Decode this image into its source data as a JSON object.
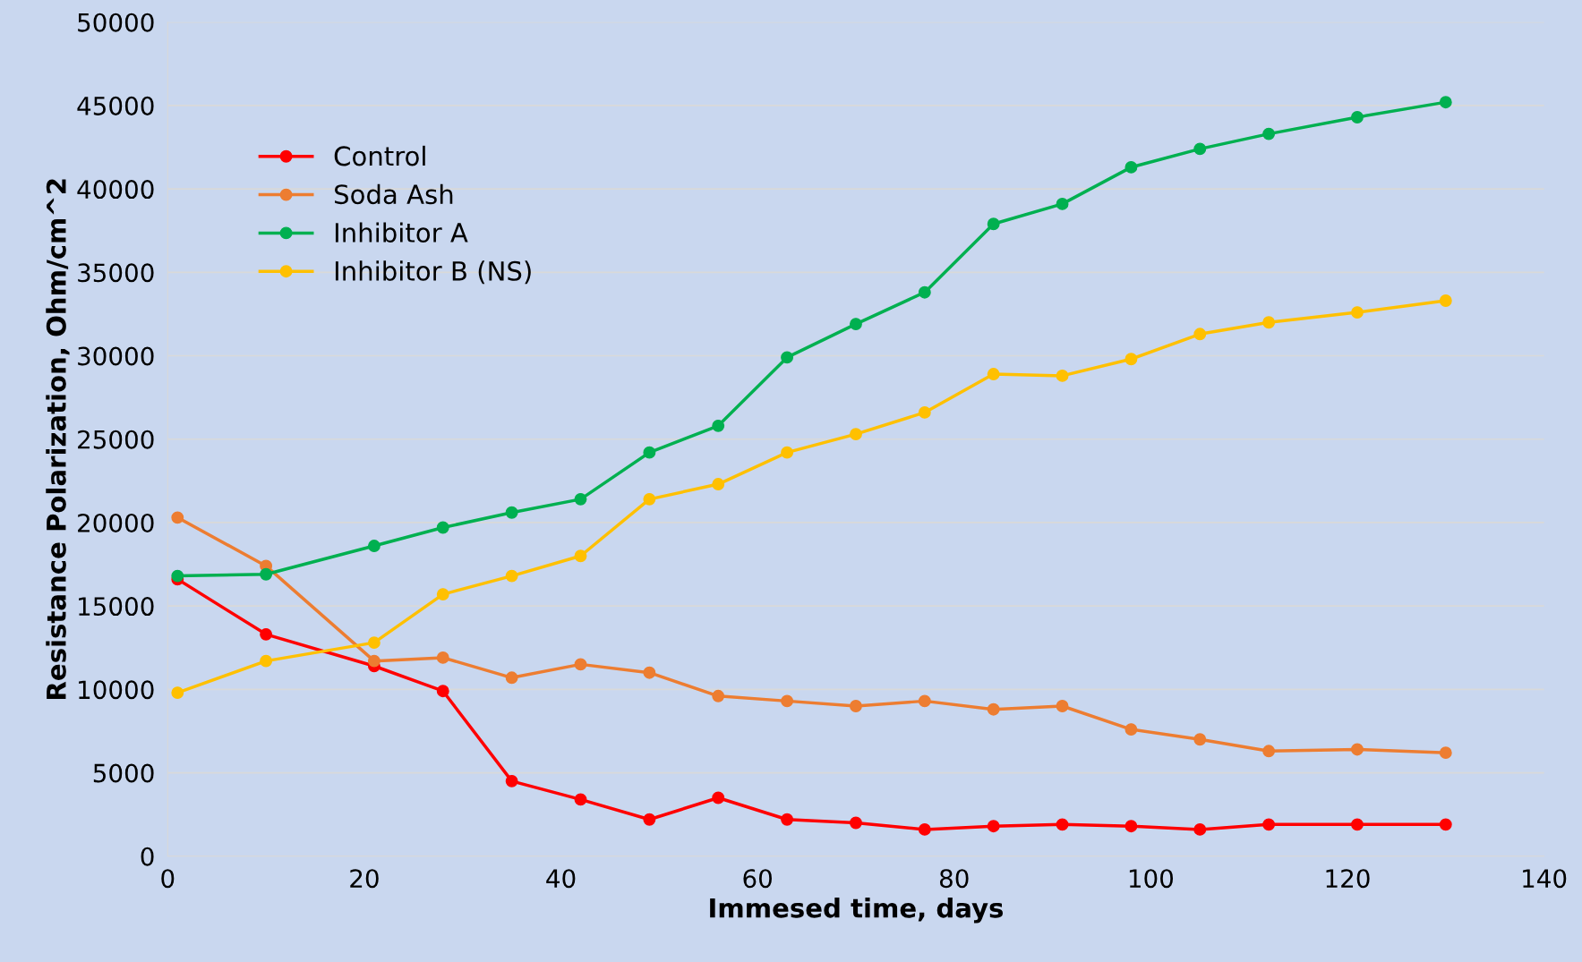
{
  "chart_data": {
    "type": "line",
    "xlabel": "Immesed time, days",
    "ylabel": "Resistance Polarization, Ohm/cm^2",
    "x": [
      1,
      10,
      21,
      28,
      35,
      42,
      49,
      56,
      63,
      70,
      77,
      84,
      91,
      98,
      105,
      112,
      121,
      130
    ],
    "series": [
      {
        "name": "Control",
        "color": "#ff0000",
        "values": [
          16600,
          13300,
          11400,
          9900,
          4500,
          3400,
          2200,
          3500,
          2200,
          2000,
          1600,
          1800,
          1900,
          1800,
          1600,
          1900,
          1900,
          1900
        ]
      },
      {
        "name": "Soda Ash",
        "color": "#ed7d31",
        "values": [
          20300,
          17400,
          11700,
          11900,
          10700,
          11500,
          11000,
          9600,
          9300,
          9000,
          9300,
          8800,
          9000,
          7600,
          7000,
          6300,
          6400,
          6200
        ]
      },
      {
        "name": "Inhibitor A",
        "color": "#00b050",
        "values": [
          16800,
          16900,
          18600,
          19700,
          20600,
          21400,
          24200,
          25800,
          29900,
          31900,
          33800,
          37900,
          39100,
          41300,
          42400,
          43300,
          44300,
          45200
        ]
      },
      {
        "name": "Inhibitor B (NS)",
        "color": "#ffc000",
        "values": [
          9800,
          11700,
          12800,
          15700,
          16800,
          18000,
          21400,
          22300,
          24200,
          25300,
          26600,
          28900,
          28800,
          29800,
          31300,
          32000,
          32600,
          33300
        ]
      }
    ],
    "xlim": [
      0,
      140
    ],
    "xticks": [
      0,
      20,
      40,
      60,
      80,
      100,
      120,
      140
    ],
    "ylim": [
      0,
      50000
    ],
    "yticks": [
      0,
      5000,
      10000,
      15000,
      20000,
      25000,
      30000,
      35000,
      40000,
      45000,
      50000
    ],
    "grid": "y",
    "legend": "top left",
    "marker": "circle",
    "line_style": "solid"
  }
}
